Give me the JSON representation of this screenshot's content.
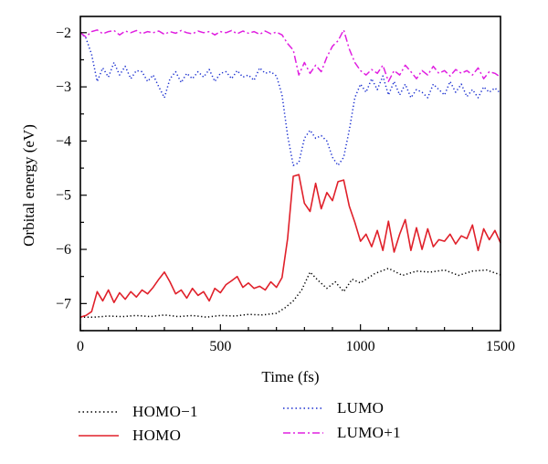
{
  "chart_data": {
    "type": "line",
    "title": "",
    "xlabel": "Time (fs)",
    "ylabel": "Orbital energy (eV)",
    "xlim": [
      0,
      1500
    ],
    "ylim": [
      -7.5,
      -1.7
    ],
    "xticks": [
      0,
      500,
      1000,
      1500
    ],
    "xtick_labels": [
      "0",
      "500",
      "1000",
      "1500"
    ],
    "yticks": [
      -7,
      -6,
      -5,
      -4,
      -3,
      -2
    ],
    "ytick_labels": [
      "−7",
      "−6",
      "−5",
      "−4",
      "−3",
      "−2"
    ],
    "grid": false,
    "legend_position": "bottom",
    "series": [
      {
        "name": "HOMO−1",
        "color": "#000000",
        "style": "dotted",
        "x": [
          0,
          50,
          100,
          150,
          200,
          250,
          300,
          350,
          400,
          450,
          500,
          550,
          600,
          650,
          700,
          730,
          760,
          790,
          820,
          850,
          880,
          910,
          940,
          970,
          1000,
          1050,
          1100,
          1150,
          1200,
          1250,
          1300,
          1350,
          1400,
          1450,
          1500
        ],
        "y": [
          -7.25,
          -7.25,
          -7.23,
          -7.24,
          -7.22,
          -7.24,
          -7.21,
          -7.24,
          -7.22,
          -7.25,
          -7.22,
          -7.23,
          -7.2,
          -7.21,
          -7.18,
          -7.08,
          -6.95,
          -6.75,
          -6.42,
          -6.58,
          -6.72,
          -6.6,
          -6.78,
          -6.55,
          -6.62,
          -6.45,
          -6.35,
          -6.48,
          -6.4,
          -6.42,
          -6.38,
          -6.48,
          -6.4,
          -6.38,
          -6.47
        ]
      },
      {
        "name": "HOMO",
        "color": "#e0202a",
        "style": "solid",
        "x": [
          0,
          20,
          40,
          60,
          80,
          100,
          120,
          140,
          160,
          180,
          200,
          220,
          240,
          260,
          280,
          300,
          320,
          340,
          360,
          380,
          400,
          420,
          440,
          460,
          480,
          500,
          520,
          540,
          560,
          580,
          600,
          620,
          640,
          660,
          680,
          700,
          720,
          740,
          760,
          780,
          800,
          820,
          840,
          860,
          880,
          900,
          920,
          940,
          960,
          980,
          1000,
          1020,
          1040,
          1060,
          1080,
          1100,
          1120,
          1140,
          1160,
          1180,
          1200,
          1220,
          1240,
          1260,
          1280,
          1300,
          1320,
          1340,
          1360,
          1380,
          1400,
          1420,
          1440,
          1460,
          1480,
          1500
        ],
        "y": [
          -7.25,
          -7.22,
          -7.15,
          -6.78,
          -6.95,
          -6.75,
          -6.98,
          -6.8,
          -6.92,
          -6.78,
          -6.88,
          -6.75,
          -6.82,
          -6.7,
          -6.55,
          -6.42,
          -6.6,
          -6.82,
          -6.75,
          -6.9,
          -6.72,
          -6.85,
          -6.78,
          -6.95,
          -6.72,
          -6.8,
          -6.65,
          -6.58,
          -6.5,
          -6.7,
          -6.62,
          -6.72,
          -6.68,
          -6.75,
          -6.6,
          -6.7,
          -6.52,
          -5.8,
          -4.65,
          -4.62,
          -5.15,
          -5.3,
          -4.78,
          -5.25,
          -4.95,
          -5.1,
          -4.75,
          -4.72,
          -5.2,
          -5.5,
          -5.85,
          -5.72,
          -5.95,
          -5.65,
          -6.02,
          -5.48,
          -6.05,
          -5.72,
          -5.45,
          -6.02,
          -5.6,
          -6.0,
          -5.62,
          -5.95,
          -5.82,
          -5.85,
          -5.72,
          -5.9,
          -5.75,
          -5.8,
          -5.55,
          -6.02,
          -5.62,
          -5.82,
          -5.65,
          -5.88
        ]
      },
      {
        "name": "LUMO",
        "color": "#1a2fd0",
        "style": "dotted",
        "x": [
          0,
          20,
          40,
          60,
          80,
          100,
          120,
          140,
          160,
          180,
          200,
          220,
          240,
          260,
          280,
          300,
          320,
          340,
          360,
          380,
          400,
          420,
          440,
          460,
          480,
          500,
          520,
          540,
          560,
          580,
          600,
          620,
          640,
          660,
          680,
          700,
          720,
          740,
          760,
          780,
          800,
          820,
          840,
          860,
          880,
          900,
          920,
          940,
          960,
          980,
          1000,
          1020,
          1040,
          1060,
          1080,
          1100,
          1120,
          1140,
          1160,
          1180,
          1200,
          1220,
          1240,
          1260,
          1280,
          1300,
          1320,
          1340,
          1360,
          1380,
          1400,
          1420,
          1440,
          1460,
          1480,
          1500
        ],
        "y": [
          -2.0,
          -2.1,
          -2.4,
          -2.9,
          -2.65,
          -2.82,
          -2.55,
          -2.78,
          -2.62,
          -2.85,
          -2.7,
          -2.72,
          -2.9,
          -2.78,
          -3.0,
          -3.2,
          -2.85,
          -2.72,
          -2.92,
          -2.75,
          -2.85,
          -2.72,
          -2.82,
          -2.68,
          -2.9,
          -2.75,
          -2.72,
          -2.85,
          -2.7,
          -2.82,
          -2.78,
          -2.88,
          -2.65,
          -2.75,
          -2.72,
          -2.8,
          -3.15,
          -3.9,
          -4.45,
          -4.4,
          -3.95,
          -3.8,
          -3.95,
          -3.9,
          -4.0,
          -4.3,
          -4.45,
          -4.3,
          -3.8,
          -3.2,
          -2.95,
          -3.1,
          -2.85,
          -3.05,
          -2.8,
          -3.15,
          -2.9,
          -3.15,
          -2.95,
          -3.2,
          -3.05,
          -3.1,
          -3.2,
          -2.95,
          -3.05,
          -3.15,
          -2.9,
          -3.1,
          -2.95,
          -3.18,
          -3.05,
          -3.2,
          -3.0,
          -3.1,
          -3.02,
          -3.12
        ]
      },
      {
        "name": "LUMO+1",
        "color": "#e020e0",
        "style": "dashdot",
        "x": [
          0,
          20,
          40,
          60,
          80,
          100,
          120,
          140,
          160,
          180,
          200,
          220,
          240,
          260,
          280,
          300,
          320,
          340,
          360,
          380,
          400,
          420,
          440,
          460,
          480,
          500,
          520,
          540,
          560,
          580,
          600,
          620,
          640,
          660,
          680,
          700,
          720,
          740,
          760,
          780,
          800,
          820,
          840,
          860,
          880,
          900,
          920,
          940,
          960,
          980,
          1000,
          1020,
          1040,
          1060,
          1080,
          1100,
          1120,
          1140,
          1160,
          1180,
          1200,
          1220,
          1240,
          1260,
          1280,
          1300,
          1320,
          1340,
          1360,
          1380,
          1400,
          1420,
          1440,
          1460,
          1480,
          1500
        ],
        "y": [
          -2.0,
          -2.08,
          -1.98,
          -1.95,
          -2.02,
          -1.98,
          -1.96,
          -2.04,
          -1.97,
          -2.0,
          -1.96,
          -2.02,
          -1.98,
          -2.0,
          -1.97,
          -2.03,
          -1.98,
          -2.01,
          -1.96,
          -2.0,
          -2.02,
          -1.97,
          -2.0,
          -1.98,
          -2.04,
          -1.98,
          -2.0,
          -1.96,
          -2.02,
          -1.97,
          -2.01,
          -1.98,
          -2.03,
          -1.97,
          -2.02,
          -1.99,
          -2.04,
          -2.2,
          -2.32,
          -2.78,
          -2.55,
          -2.75,
          -2.6,
          -2.72,
          -2.45,
          -2.25,
          -2.15,
          -1.95,
          -2.3,
          -2.55,
          -2.7,
          -2.78,
          -2.68,
          -2.75,
          -2.6,
          -2.9,
          -2.7,
          -2.78,
          -2.6,
          -2.72,
          -2.85,
          -2.7,
          -2.78,
          -2.62,
          -2.75,
          -2.7,
          -2.8,
          -2.68,
          -2.75,
          -2.7,
          -2.78,
          -2.65,
          -2.85,
          -2.72,
          -2.75,
          -2.82
        ]
      }
    ]
  }
}
